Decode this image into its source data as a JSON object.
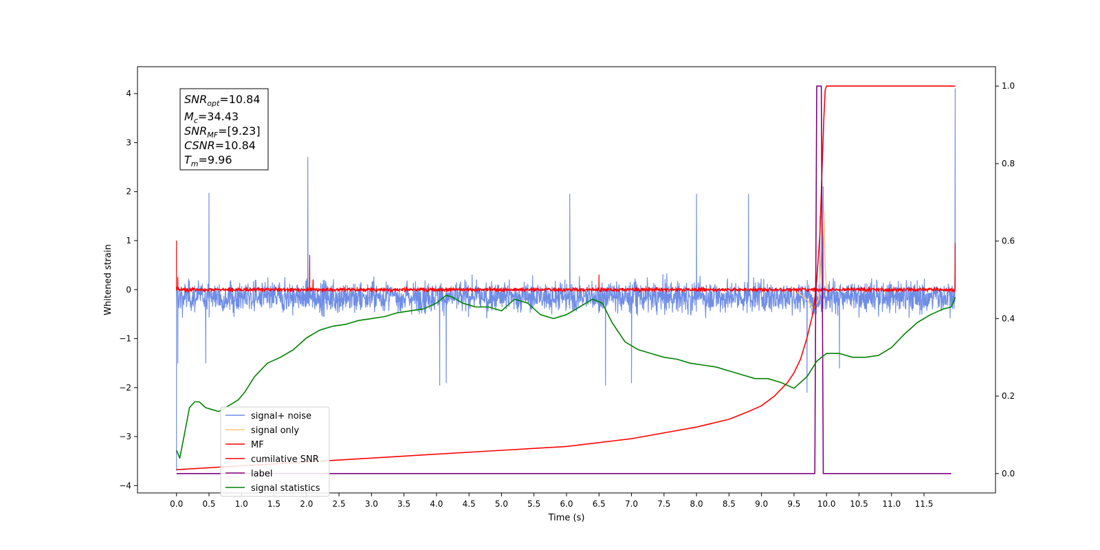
{
  "chart_data": {
    "type": "line",
    "title": "",
    "xlabel": "Time (s)",
    "ylabel_left": "Whitened strain",
    "ylabel_right": "",
    "xlim": [
      -0.6,
      12.6
    ],
    "ylim_left": [
      -4.15,
      4.55
    ],
    "ylim_right": [
      -0.05,
      1.05
    ],
    "x_ticks": [
      "0.0",
      "0.5",
      "1.0",
      "1.5",
      "2.0",
      "2.5",
      "3.0",
      "3.5",
      "4.0",
      "4.5",
      "5.0",
      "5.5",
      "6.0",
      "6.5",
      "7.0",
      "7.5",
      "8.0",
      "8.5",
      "9.0",
      "9.5",
      "10.0",
      "10.5",
      "11.0",
      "11.5"
    ],
    "y_ticks_left": [
      "4",
      "3",
      "2",
      "1",
      "0",
      "−1",
      "−2",
      "−3",
      "−4"
    ],
    "y_ticks_right": [
      "1.0",
      "0.8",
      "0.6",
      "0.4",
      "0.2",
      "0.0"
    ],
    "grid": false,
    "legend_placement": "lower-left",
    "stats_box": {
      "snr_opt": {
        "var": "SNR",
        "sub": "opt",
        "value": "=10.84"
      },
      "mc": {
        "var": "M",
        "sub": "c",
        "value": "=34.43"
      },
      "snr_mf": {
        "var": "SNR",
        "sub": "MF",
        "value": "=[9.23]"
      },
      "csnr": {
        "var": "CSNR",
        "sub": "",
        "value": "=10.84"
      },
      "tm": {
        "var": "T",
        "sub": "m",
        "value": "=9.96"
      }
    },
    "series": [
      {
        "name": "signal+ noise",
        "axis": "left",
        "color": "#6f8de6",
        "style": "noise",
        "x_range": [
          0,
          11.98
        ],
        "center": -0.15,
        "band": [
          -1.1,
          0.95
        ],
        "spikes": [
          [
            0.0,
            -3.7
          ],
          [
            0.02,
            -1.5
          ],
          [
            0.5,
            1.97
          ],
          [
            0.45,
            -1.5
          ],
          [
            2.02,
            2.7
          ],
          [
            4.05,
            -1.95
          ],
          [
            4.15,
            -1.9
          ],
          [
            6.05,
            1.95
          ],
          [
            6.6,
            -1.95
          ],
          [
            7.0,
            -1.9
          ],
          [
            8.0,
            1.95
          ],
          [
            8.8,
            1.95
          ],
          [
            9.7,
            -2.1
          ],
          [
            9.95,
            2.1
          ],
          [
            9.9,
            1.5
          ],
          [
            10.2,
            -1.6
          ],
          [
            11.98,
            4.1
          ]
        ]
      },
      {
        "name": "signal only",
        "axis": "left",
        "color": "#f5c77a",
        "x": [
          9.5,
          9.7,
          9.8,
          9.88,
          9.93,
          9.96,
          9.98,
          10.0
        ],
        "y": [
          0.0,
          -0.2,
          -0.4,
          -0.2,
          0.8,
          1.6,
          0.5,
          0.0
        ]
      },
      {
        "name": "MF",
        "axis": "left",
        "color": "#ff0000",
        "style": "noise",
        "x_range": [
          0,
          11.98
        ],
        "center": 0.0,
        "band": [
          -0.15,
          0.15
        ],
        "spikes": [
          [
            0.0,
            1.0
          ],
          [
            0.02,
            0.25
          ],
          [
            2.05,
            0.7
          ],
          [
            2.1,
            0.2
          ],
          [
            6.5,
            0.3
          ],
          [
            11.98,
            0.95
          ]
        ]
      },
      {
        "name": "cumilative SNR",
        "axis": "right",
        "color": "#ff0000",
        "x": [
          0.0,
          1.0,
          2.0,
          3.0,
          4.0,
          5.0,
          6.0,
          7.0,
          7.5,
          8.0,
          8.5,
          8.8,
          9.0,
          9.2,
          9.4,
          9.5,
          9.6,
          9.7,
          9.8,
          9.85,
          9.9,
          9.93,
          9.96,
          9.98,
          10.0,
          11.98
        ],
        "y": [
          0.01,
          0.02,
          0.03,
          0.04,
          0.05,
          0.06,
          0.07,
          0.09,
          0.105,
          0.12,
          0.14,
          0.16,
          0.175,
          0.2,
          0.235,
          0.26,
          0.295,
          0.35,
          0.42,
          0.5,
          0.62,
          0.78,
          0.92,
          0.99,
          1.0,
          1.0
        ]
      },
      {
        "name": "label",
        "axis": "right",
        "color": "#800080",
        "x": [
          0.0,
          9.82,
          9.85,
          9.92,
          9.95,
          11.92
        ],
        "y": [
          0.0,
          0.0,
          1.0,
          1.0,
          0.0,
          0.0
        ]
      },
      {
        "name": "signal statistics",
        "axis": "right",
        "color": "#008000",
        "x": [
          0.0,
          0.05,
          0.12,
          0.2,
          0.28,
          0.35,
          0.45,
          0.55,
          0.65,
          0.75,
          0.85,
          0.95,
          1.05,
          1.2,
          1.4,
          1.6,
          1.8,
          2.0,
          2.2,
          2.4,
          2.6,
          2.8,
          3.0,
          3.2,
          3.4,
          3.6,
          3.8,
          4.0,
          4.15,
          4.25,
          4.4,
          4.6,
          4.8,
          5.0,
          5.2,
          5.4,
          5.6,
          5.8,
          6.0,
          6.2,
          6.4,
          6.55,
          6.7,
          6.9,
          7.1,
          7.3,
          7.5,
          7.7,
          7.9,
          8.1,
          8.3,
          8.5,
          8.7,
          8.9,
          9.1,
          9.3,
          9.5,
          9.7,
          9.85,
          10.0,
          10.2,
          10.4,
          10.6,
          10.8,
          11.0,
          11.2,
          11.4,
          11.6,
          11.8,
          11.92,
          11.98
        ],
        "y": [
          0.06,
          0.04,
          0.1,
          0.17,
          0.185,
          0.185,
          0.17,
          0.165,
          0.16,
          0.17,
          0.18,
          0.19,
          0.21,
          0.25,
          0.285,
          0.3,
          0.32,
          0.35,
          0.37,
          0.38,
          0.385,
          0.395,
          0.4,
          0.405,
          0.415,
          0.42,
          0.425,
          0.44,
          0.46,
          0.455,
          0.44,
          0.43,
          0.43,
          0.42,
          0.45,
          0.44,
          0.41,
          0.4,
          0.41,
          0.43,
          0.45,
          0.44,
          0.39,
          0.34,
          0.32,
          0.31,
          0.3,
          0.295,
          0.285,
          0.28,
          0.275,
          0.265,
          0.255,
          0.245,
          0.245,
          0.235,
          0.22,
          0.25,
          0.29,
          0.31,
          0.31,
          0.3,
          0.3,
          0.305,
          0.325,
          0.36,
          0.39,
          0.41,
          0.425,
          0.43,
          0.455
        ]
      }
    ]
  }
}
